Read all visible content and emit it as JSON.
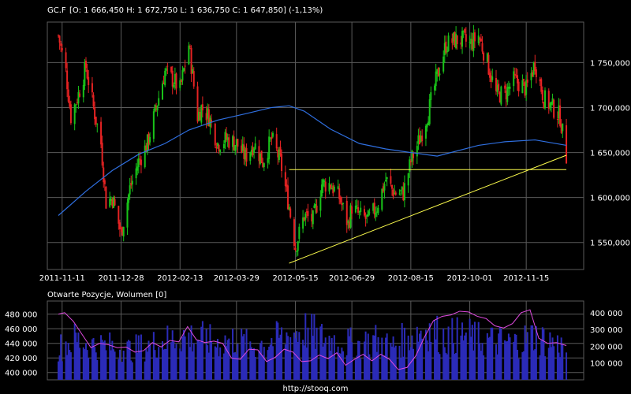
{
  "header": {
    "symbol": "GC.F",
    "ohlc": "[O: 1 666,450  H: 1 672,750  L: 1 636,750  C: 1 647,850] (-1,13%)"
  },
  "footer": {
    "source": "http://stooq.com"
  },
  "colors": {
    "background": "#000000",
    "grid": "#5a5a5a",
    "text": "#ffffff",
    "candle_up": "#19c319",
    "candle_down": "#e62323",
    "moving_average": "#2f6fe0",
    "trendline": "#ffff4d",
    "volume_bar": "#2b2bb8",
    "open_interest": "#e04ae0"
  },
  "chart_data": [
    {
      "type": "candlestick",
      "title": "GC.F",
      "xlabel": "",
      "ylabel": "",
      "xtick_labels": [
        "2011-11-11",
        "2011-12-28",
        "2012-02-13",
        "2012-03-29",
        "2012-05-15",
        "2012-06-29",
        "2012-08-15",
        "2012-10-01",
        "2012-11-15"
      ],
      "ytick_labels": [
        "1 550,000",
        "1 600,000",
        "1 650,000",
        "1 700,000",
        "1 750,000"
      ],
      "ylim": [
        1520,
        1795
      ],
      "grid": true,
      "series": [
        {
          "name": "",
          "kind": "close",
          "x": [
            "2011-11-08",
            "2011-11-14",
            "2011-11-18",
            "2011-11-24",
            "2011-11-30",
            "2011-12-06",
            "2011-12-12",
            "2011-12-16",
            "2011-12-21",
            "2011-12-28",
            "2012-01-04",
            "2012-01-11",
            "2012-01-18",
            "2012-01-25",
            "2012-02-01",
            "2012-02-08",
            "2012-02-13",
            "2012-02-20",
            "2012-02-27",
            "2012-03-01",
            "2012-03-07",
            "2012-03-14",
            "2012-03-21",
            "2012-03-29",
            "2012-04-05",
            "2012-04-12",
            "2012-04-19",
            "2012-04-26",
            "2012-05-03",
            "2012-05-10",
            "2012-05-15",
            "2012-05-22",
            "2012-05-29",
            "2012-06-05",
            "2012-06-12",
            "2012-06-19",
            "2012-06-26",
            "2012-06-29",
            "2012-07-05",
            "2012-07-12",
            "2012-07-19",
            "2012-07-26",
            "2012-08-02",
            "2012-08-09",
            "2012-08-15",
            "2012-08-22",
            "2012-08-29",
            "2012-09-05",
            "2012-09-12",
            "2012-09-19",
            "2012-09-26",
            "2012-10-01",
            "2012-10-08",
            "2012-10-15",
            "2012-10-22",
            "2012-10-29",
            "2012-11-05",
            "2012-11-12",
            "2012-11-15",
            "2012-11-22",
            "2012-11-29",
            "2012-12-06",
            "2012-12-12",
            "2012-12-17"
          ],
          "y": [
            1780,
            1740,
            1690,
            1715,
            1745,
            1700,
            1660,
            1595,
            1600,
            1560,
            1610,
            1640,
            1660,
            1700,
            1740,
            1730,
            1720,
            1770,
            1690,
            1700,
            1690,
            1660,
            1665,
            1660,
            1645,
            1660,
            1640,
            1665,
            1640,
            1590,
            1545,
            1580,
            1575,
            1615,
            1615,
            1600,
            1570,
            1590,
            1580,
            1575,
            1590,
            1620,
            1605,
            1605,
            1640,
            1665,
            1695,
            1735,
            1770,
            1775,
            1775,
            1770,
            1780,
            1750,
            1715,
            1715,
            1730,
            1725,
            1720,
            1750,
            1710,
            1700,
            1690,
            1645
          ]
        },
        {
          "name": "",
          "kind": "moving_average",
          "x": [
            "2011-11-08",
            "2011-11-30",
            "2011-12-21",
            "2012-01-11",
            "2012-02-01",
            "2012-02-20",
            "2012-03-14",
            "2012-04-05",
            "2012-04-26",
            "2012-05-10",
            "2012-05-22",
            "2012-06-12",
            "2012-07-05",
            "2012-07-26",
            "2012-08-15",
            "2012-09-05",
            "2012-10-08",
            "2012-10-29",
            "2012-11-22",
            "2012-12-17"
          ],
          "y": [
            1580,
            1607,
            1630,
            1648,
            1660,
            1675,
            1686,
            1693,
            1700,
            1702,
            1696,
            1676,
            1660,
            1654,
            1650,
            1646,
            1658,
            1662,
            1664,
            1658
          ]
        },
        {
          "name": "",
          "kind": "trendline",
          "x": [
            "2012-05-10",
            "2012-12-17"
          ],
          "y": [
            1527,
            1647
          ]
        },
        {
          "name": "",
          "kind": "horizontal_line",
          "x": [
            "2012-05-10",
            "2012-12-17"
          ],
          "y": [
            1631,
            1631
          ]
        }
      ]
    },
    {
      "type": "bar",
      "title": "Otwarte Pozycje, Wolumen [0]",
      "xlabel": "",
      "ylabel": "",
      "ytick_labels_left": [
        "400 000",
        "420 000",
        "440 000",
        "460 000",
        "480 000"
      ],
      "ytick_labels_right": [
        "100 000",
        "200 000",
        "300 000",
        "400 000"
      ],
      "ylim_left": [
        390000,
        498000
      ],
      "ylim_right": [
        0,
        470000
      ],
      "grid": true,
      "series": [
        {
          "name": "",
          "kind": "volume",
          "axis": "right",
          "x": [
            "2011-11-08",
            "2011-11-21",
            "2011-12-05",
            "2011-12-19",
            "2012-01-03",
            "2012-01-17",
            "2012-01-31",
            "2012-02-14",
            "2012-02-28",
            "2012-03-13",
            "2012-03-27",
            "2012-04-10",
            "2012-04-24",
            "2012-05-08",
            "2012-05-22",
            "2012-06-05",
            "2012-06-19",
            "2012-07-03",
            "2012-07-17",
            "2012-07-31",
            "2012-08-14",
            "2012-08-28",
            "2012-09-11",
            "2012-09-25",
            "2012-10-09",
            "2012-10-23",
            "2012-11-06",
            "2012-11-20",
            "2012-12-04",
            "2012-12-17"
          ],
          "y": [
            190000,
            240000,
            210000,
            200000,
            180000,
            200000,
            230000,
            260000,
            250000,
            220000,
            240000,
            200000,
            230000,
            260000,
            300000,
            250000,
            230000,
            210000,
            240000,
            200000,
            260000,
            310000,
            250000,
            270000,
            240000,
            230000,
            220000,
            260000,
            230000,
            190000
          ]
        },
        {
          "name": "",
          "kind": "open_interest",
          "axis": "left",
          "x": [
            "2011-11-08",
            "2011-11-13",
            "2011-11-20",
            "2011-11-27",
            "2011-12-04",
            "2011-12-11",
            "2011-12-18",
            "2011-12-25",
            "2012-01-01",
            "2012-01-08",
            "2012-01-15",
            "2012-01-22",
            "2012-01-29",
            "2012-02-05",
            "2012-02-12",
            "2012-02-19",
            "2012-02-26",
            "2012-03-04",
            "2012-03-11",
            "2012-03-18",
            "2012-03-25",
            "2012-04-01",
            "2012-04-08",
            "2012-04-15",
            "2012-04-22",
            "2012-04-29",
            "2012-05-06",
            "2012-05-13",
            "2012-05-20",
            "2012-05-27",
            "2012-06-03",
            "2012-06-10",
            "2012-06-17",
            "2012-06-24",
            "2012-07-01",
            "2012-07-08",
            "2012-07-15",
            "2012-07-22",
            "2012-07-29",
            "2012-08-05",
            "2012-08-12",
            "2012-08-19",
            "2012-08-26",
            "2012-09-02",
            "2012-09-09",
            "2012-09-16",
            "2012-09-23",
            "2012-09-30",
            "2012-10-07",
            "2012-10-14",
            "2012-10-21",
            "2012-10-28",
            "2012-11-04",
            "2012-11-11",
            "2012-11-18",
            "2012-11-25",
            "2012-12-02",
            "2012-12-09",
            "2012-12-17"
          ],
          "y": [
            480000,
            482000,
            470000,
            452000,
            434000,
            440000,
            438000,
            434000,
            435000,
            428000,
            430000,
            441000,
            435000,
            444000,
            442000,
            463000,
            445000,
            441000,
            443000,
            440000,
            420000,
            418000,
            432000,
            431000,
            415000,
            421000,
            432000,
            428000,
            415000,
            416000,
            424000,
            419000,
            427000,
            410000,
            418000,
            425000,
            416000,
            425000,
            418000,
            404000,
            407000,
            423000,
            449000,
            471000,
            477000,
            479000,
            484000,
            483000,
            477000,
            474000,
            464000,
            461000,
            467000,
            482000,
            486000,
            447000,
            440000,
            441000,
            437000
          ]
        }
      ]
    }
  ]
}
